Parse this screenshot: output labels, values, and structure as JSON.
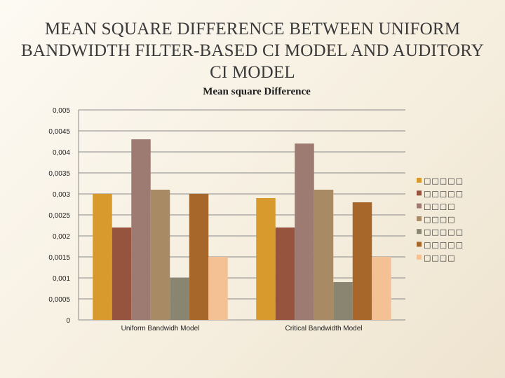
{
  "slide": {
    "title_line1": "MEAN SQUARE DIFFERENCE BETWEEN UNIFORM",
    "title_line2": "BANDWIDTH FILTER-BASED CI MODEL AND AUDITORY",
    "title_line3": "CI MODEL"
  },
  "chart_data": {
    "type": "bar",
    "title": "Mean square Difference",
    "xlabel": "",
    "ylabel": "",
    "ylim": [
      0,
      0.005
    ],
    "yticks": [
      0,
      0.0005,
      0.001,
      0.0015,
      0.002,
      0.0025,
      0.003,
      0.0035,
      0.004,
      0.0045,
      0.005
    ],
    "ytick_labels": [
      "0",
      "0,0005",
      "0,001",
      "0,0015",
      "0,002",
      "0,0025",
      "0,003",
      "0,0035",
      "0,004",
      "0,0045",
      "0,005"
    ],
    "grid": true,
    "legend_position": "right",
    "categories": [
      "Uniform Bandwidh Model",
      "Critical Bandwidth Model"
    ],
    "series": [
      {
        "name": "□□□□□",
        "color": "#d89a2c",
        "values": [
          0.003,
          0.0029
        ]
      },
      {
        "name": "□□□□□",
        "color": "#96543f",
        "values": [
          0.0022,
          0.0022
        ]
      },
      {
        "name": "□□□□",
        "color": "#9e7b72",
        "values": [
          0.0043,
          0.0042
        ]
      },
      {
        "name": "□□□□",
        "color": "#a88a64",
        "values": [
          0.0031,
          0.0031
        ]
      },
      {
        "name": "□□□□□",
        "color": "#8a8570",
        "values": [
          0.001,
          0.0009
        ]
      },
      {
        "name": "□□□□□",
        "color": "#a8672a",
        "values": [
          0.003,
          0.0028
        ]
      },
      {
        "name": "□□□□",
        "color": "#f4c195",
        "values": [
          0.0015,
          0.0015
        ]
      }
    ]
  }
}
